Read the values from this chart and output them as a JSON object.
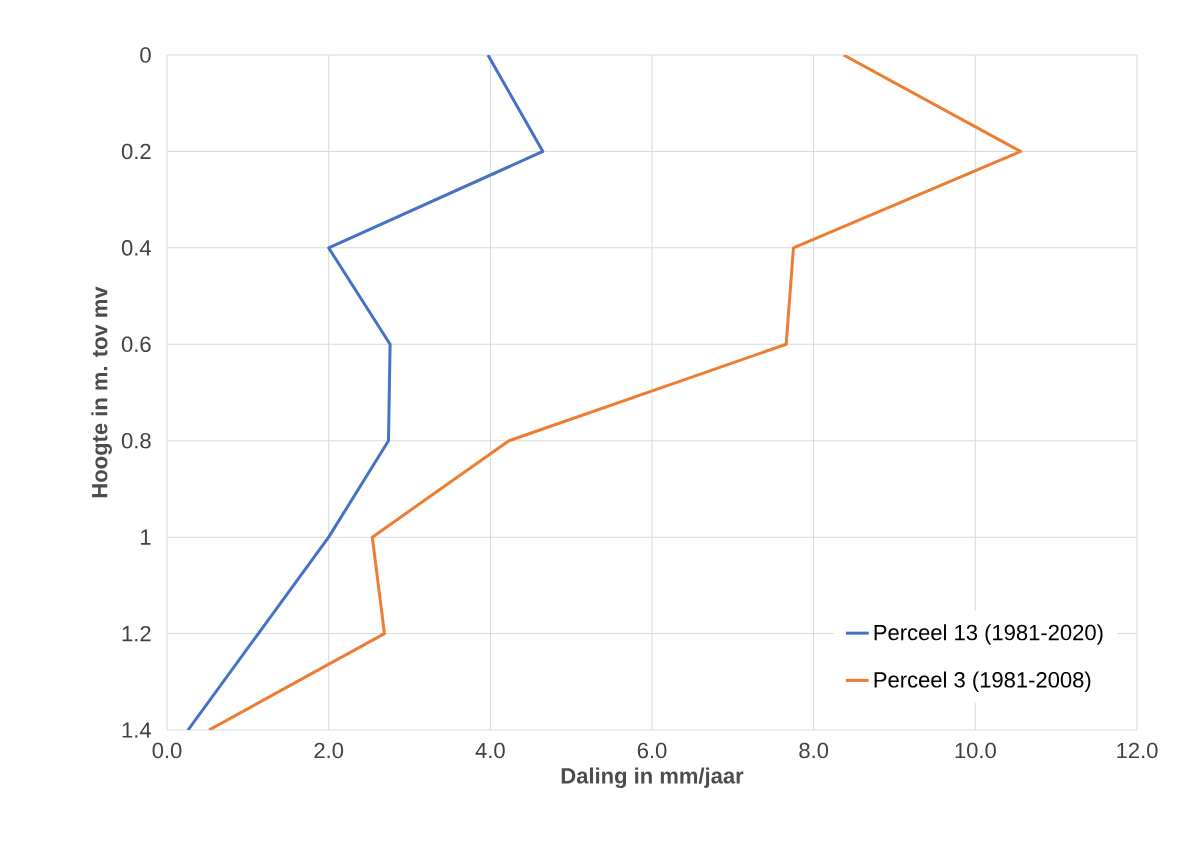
{
  "chart_data": {
    "type": "line",
    "xlabel": "Daling in mm/jaar",
    "ylabel": "Hoogte in m. tov mv",
    "series": [
      {
        "name": "Perceel 13 (1981-2020)",
        "color": "#4472c4",
        "x": [
          3.97,
          4.65,
          2.0,
          2.76,
          2.74,
          2.0,
          1.13,
          0.26
        ],
        "values": [
          0,
          0.2,
          0.4,
          0.6,
          0.8,
          1.0,
          1.2,
          1.4
        ]
      },
      {
        "name": "Perceel 3 (1981-2008)",
        "color": "#ed7d31",
        "x": [
          8.37,
          10.56,
          7.75,
          7.66,
          4.23,
          2.54,
          2.69,
          0.52
        ],
        "values": [
          0,
          0.2,
          0.4,
          0.6,
          0.8,
          1.0,
          1.2,
          1.4
        ]
      }
    ],
    "xlim": [
      0,
      12
    ],
    "ylim": [
      1.4,
      0
    ],
    "xticks": [
      {
        "value": 0,
        "label": "0.0"
      },
      {
        "value": 2,
        "label": "2.0"
      },
      {
        "value": 4,
        "label": "4.0"
      },
      {
        "value": 6,
        "label": "6.0"
      },
      {
        "value": 8,
        "label": "8.0"
      },
      {
        "value": 10,
        "label": "10.0"
      },
      {
        "value": 12,
        "label": "12.0"
      }
    ],
    "yticks": [
      0,
      0.2,
      0.4,
      0.6,
      0.8,
      1,
      1.2,
      1.4
    ],
    "grid": true,
    "legend": "bottom right",
    "marker": "none",
    "line_style": "solid"
  }
}
